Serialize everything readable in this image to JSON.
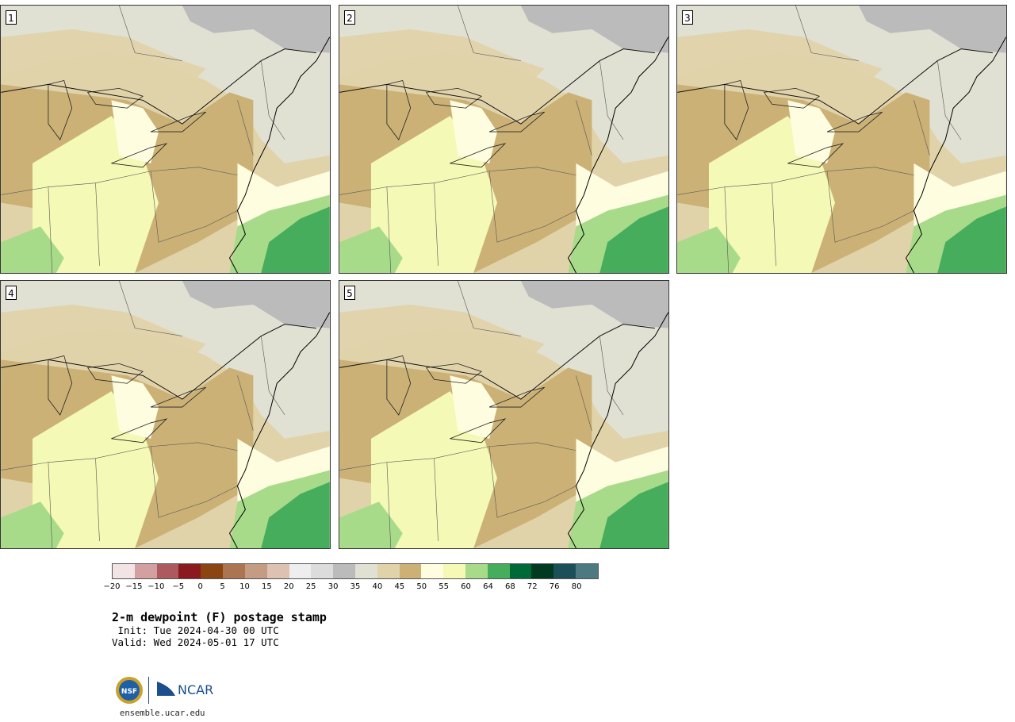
{
  "panels": [
    {
      "label": "1"
    },
    {
      "label": "2"
    },
    {
      "label": "3"
    },
    {
      "label": "4"
    },
    {
      "label": "5"
    }
  ],
  "colorbar": {
    "colors": [
      "#f2e4e4",
      "#d2a0a0",
      "#ad5a5f",
      "#8b1a1f",
      "#8a4513",
      "#ab7551",
      "#c49c83",
      "#dec1b1",
      "#eeeeee",
      "#dcdcdc",
      "#bbbbbb",
      "#e0e0d3",
      "#e1d3a9",
      "#cbb176",
      "#fffde0",
      "#f4f9b6",
      "#a7db8a",
      "#46ad5c",
      "#006938",
      "#023a21",
      "#1b5058",
      "#4d7a81"
    ],
    "tick_labels": [
      "−20",
      "−15",
      "−10",
      "−5",
      "0",
      "5",
      "10",
      "15",
      "20",
      "25",
      "30",
      "35",
      "40",
      "45",
      "50",
      "55",
      "60",
      "64",
      "68",
      "72",
      "76",
      "80"
    ]
  },
  "title": "2-m dewpoint (F) postage stamp",
  "init": " Init: Tue 2024-04-30 00 UTC",
  "valid": "Valid: Wed 2024-05-01 17 UTC",
  "logo": {
    "ncar_text": "NCAR",
    "nsf_text": "NSF"
  },
  "url": "ensemble.ucar.edu"
}
